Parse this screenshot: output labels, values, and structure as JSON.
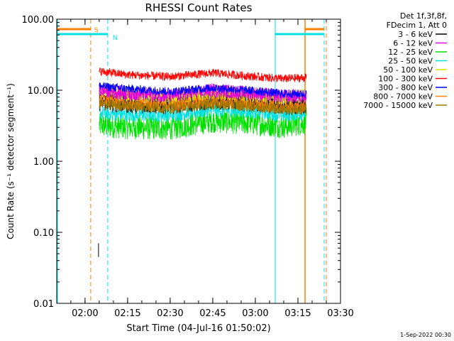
{
  "chart_data": {
    "type": "line",
    "title": "RHESSI Count Rates",
    "xlabel": "Start Time (04-Jul-16 01:50:02)",
    "ylabel": "Count Rate (s⁻¹ detector segment⁻¹)",
    "y_scale": "log",
    "ylim": [
      0.01,
      100
    ],
    "xlim": [
      "01:50:02",
      "03:30:00"
    ],
    "x_ticks": [
      "02:00",
      "02:15",
      "02:30",
      "02:45",
      "03:00",
      "03:15",
      "03:30"
    ],
    "y_ticks": [
      "0.01",
      "0.10",
      "1.00",
      "10.00",
      "100.00"
    ],
    "legend_position": "right, outside plot",
    "legend_header": [
      "Det 1f,3f,8f,",
      "FDecim 1, Att 0"
    ],
    "series": [
      {
        "name": "3 - 6 keV",
        "color": "#000000",
        "x": [
          "02:05",
          "02:15",
          "02:30",
          "02:45",
          "03:00",
          "03:10",
          "03:18"
        ],
        "y": [
          7.0,
          6.5,
          6.3,
          7.4,
          6.7,
          6.1,
          6.2
        ]
      },
      {
        "name": "6 - 12 keV",
        "color": "#e000e0",
        "x": [
          "02:05",
          "02:15",
          "02:30",
          "02:45",
          "03:00",
          "03:10",
          "03:18"
        ],
        "y": [
          10.0,
          9.0,
          8.3,
          10.0,
          9.0,
          8.2,
          8.3
        ]
      },
      {
        "name": "12 - 25 keV",
        "color": "#00e000",
        "x": [
          "02:05",
          "02:15",
          "02:30",
          "02:45",
          "03:00",
          "03:10",
          "03:18"
        ],
        "y": [
          3.2,
          3.0,
          2.9,
          3.7,
          3.4,
          3.1,
          3.5
        ]
      },
      {
        "name": "25 - 50 keV",
        "color": "#00e0e0",
        "x": [
          "02:05",
          "02:15",
          "02:30",
          "02:45",
          "03:00",
          "03:10",
          "03:18"
        ],
        "y": [
          4.8,
          4.5,
          4.5,
          5.3,
          5.0,
          4.5,
          4.8
        ]
      },
      {
        "name": "50 - 100 keV",
        "color": "#e0e000",
        "x": [
          "02:05",
          "02:15",
          "02:30",
          "02:45",
          "03:00",
          "03:10",
          "03:18"
        ],
        "y": [
          10.0,
          8.8,
          8.0,
          9.3,
          8.6,
          7.9,
          8.4
        ]
      },
      {
        "name": "100 - 300 keV",
        "color": "#ff0000",
        "x": [
          "02:05",
          "02:15",
          "02:30",
          "02:45",
          "03:00",
          "03:10",
          "03:18"
        ],
        "y": [
          18.5,
          16.5,
          15.5,
          17.5,
          15.5,
          14.5,
          15.0
        ]
      },
      {
        "name": "300 - 800 keV",
        "color": "#0000ff",
        "x": [
          "02:05",
          "02:15",
          "02:30",
          "02:45",
          "03:00",
          "03:10",
          "03:18"
        ],
        "y": [
          11.5,
          10.5,
          9.6,
          10.8,
          9.8,
          8.9,
          8.9
        ]
      },
      {
        "name": "800 - 7000 keV",
        "color": "#ff8000",
        "x": [
          "02:05",
          "02:15",
          "02:30",
          "02:45",
          "03:00",
          "03:10",
          "03:18"
        ],
        "y": [
          7.2,
          6.6,
          6.2,
          7.1,
          6.3,
          5.7,
          5.9
        ]
      },
      {
        "name": "7000 - 15000 keV",
        "color": "#a07800",
        "x": [
          "02:05",
          "02:15",
          "02:30",
          "02:45",
          "03:00",
          "03:10",
          "03:18"
        ],
        "y": [
          6.4,
          6.0,
          5.6,
          6.4,
          5.9,
          5.4,
          5.4
        ]
      }
    ],
    "annotations": [
      {
        "label": "S",
        "kind": "SAA interval",
        "color": "#ff8000",
        "start": "02:02",
        "end": "03:25",
        "line_style": "dashed"
      },
      {
        "label": "N",
        "kind": "Night interval",
        "color": "#00e0e0",
        "start": "02:08",
        "end": "03:07",
        "line_style": "dashed/solid"
      }
    ],
    "footer": "1-Sep-2022 00:30"
  }
}
